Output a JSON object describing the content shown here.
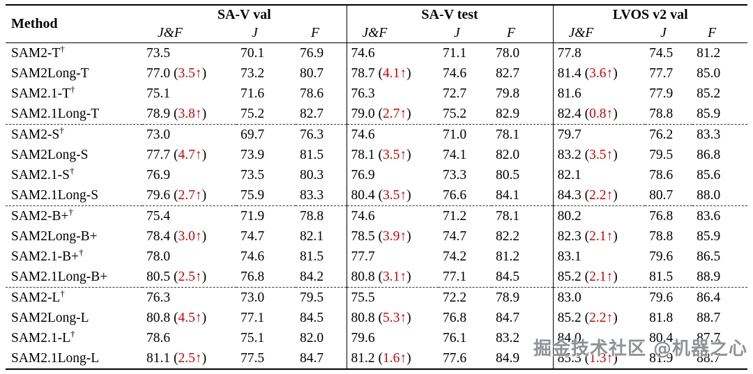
{
  "table": {
    "method_header": "Method",
    "groups": [
      {
        "label": "SA-V val",
        "cols": [
          "J&F",
          "J",
          "F"
        ]
      },
      {
        "label": "SA-V test",
        "cols": [
          "J&F",
          "J",
          "F"
        ]
      },
      {
        "label": "LVOS v2 val",
        "cols": [
          "J&F",
          "J",
          "F"
        ]
      }
    ],
    "dashed_after": [
      4,
      8,
      12
    ],
    "rows": [
      {
        "method": "SAM2-T",
        "dagger": true,
        "cells": [
          {
            "v": "73.5"
          },
          {
            "v": "70.1"
          },
          {
            "v": "76.9"
          },
          {
            "v": "74.6"
          },
          {
            "v": "71.1"
          },
          {
            "v": "78.0"
          },
          {
            "v": "77.8"
          },
          {
            "v": "74.5"
          },
          {
            "v": "81.2"
          }
        ]
      },
      {
        "method": "SAM2Long-T",
        "dagger": false,
        "cells": [
          {
            "v": "77.0",
            "d": "3.5↑"
          },
          {
            "v": "73.2"
          },
          {
            "v": "80.7"
          },
          {
            "v": "78.7",
            "d": "4.1↑"
          },
          {
            "v": "74.6"
          },
          {
            "v": "82.7"
          },
          {
            "v": "81.4",
            "d": "3.6↑"
          },
          {
            "v": "77.7"
          },
          {
            "v": "85.0"
          }
        ]
      },
      {
        "method": "SAM2.1-T",
        "dagger": true,
        "cells": [
          {
            "v": "75.1"
          },
          {
            "v": "71.6"
          },
          {
            "v": "78.6"
          },
          {
            "v": "76.3"
          },
          {
            "v": "72.7"
          },
          {
            "v": "79.8"
          },
          {
            "v": "81.6"
          },
          {
            "v": "77.9"
          },
          {
            "v": "85.2"
          }
        ]
      },
      {
        "method": "SAM2.1Long-T",
        "dagger": false,
        "cells": [
          {
            "v": "78.9",
            "d": "3.8↑"
          },
          {
            "v": "75.2"
          },
          {
            "v": "82.7"
          },
          {
            "v": "79.0",
            "d": "2.7↑"
          },
          {
            "v": "75.2"
          },
          {
            "v": "82.9"
          },
          {
            "v": "82.4",
            "d": "0.8↑"
          },
          {
            "v": "78.8"
          },
          {
            "v": "85.9"
          }
        ]
      },
      {
        "method": "SAM2-S",
        "dagger": true,
        "cells": [
          {
            "v": "73.0"
          },
          {
            "v": "69.7"
          },
          {
            "v": "76.3"
          },
          {
            "v": "74.6"
          },
          {
            "v": "71.0"
          },
          {
            "v": "78.1"
          },
          {
            "v": "79.7"
          },
          {
            "v": "76.2"
          },
          {
            "v": "83.3"
          }
        ]
      },
      {
        "method": "SAM2Long-S",
        "dagger": false,
        "cells": [
          {
            "v": "77.7",
            "d": "4.7↑"
          },
          {
            "v": "73.9"
          },
          {
            "v": "81.5"
          },
          {
            "v": "78.1",
            "d": "3.5↑"
          },
          {
            "v": "74.1"
          },
          {
            "v": "82.0"
          },
          {
            "v": "83.2",
            "d": "3.5↑"
          },
          {
            "v": "79.5"
          },
          {
            "v": "86.8"
          }
        ]
      },
      {
        "method": "SAM2.1-S",
        "dagger": true,
        "cells": [
          {
            "v": "76.9"
          },
          {
            "v": "73.5"
          },
          {
            "v": "80.3"
          },
          {
            "v": "76.9"
          },
          {
            "v": "73.3"
          },
          {
            "v": "80.5"
          },
          {
            "v": "82.1"
          },
          {
            "v": "78.6"
          },
          {
            "v": "85.6"
          }
        ]
      },
      {
        "method": "SAM2.1Long-S",
        "dagger": false,
        "cells": [
          {
            "v": "79.6",
            "d": "2.7↑"
          },
          {
            "v": "75.9"
          },
          {
            "v": "83.3"
          },
          {
            "v": "80.4",
            "d": "3.5↑"
          },
          {
            "v": "76.6"
          },
          {
            "v": "84.1"
          },
          {
            "v": "84.3",
            "d": "2.2↑"
          },
          {
            "v": "80.7"
          },
          {
            "v": "88.0"
          }
        ]
      },
      {
        "method": "SAM2-B+",
        "dagger": true,
        "cells": [
          {
            "v": "75.4"
          },
          {
            "v": "71.9"
          },
          {
            "v": "78.8"
          },
          {
            "v": "74.6"
          },
          {
            "v": "71.2"
          },
          {
            "v": "78.1"
          },
          {
            "v": "80.2"
          },
          {
            "v": "76.8"
          },
          {
            "v": "83.6"
          }
        ]
      },
      {
        "method": "SAM2Long-B+",
        "dagger": false,
        "cells": [
          {
            "v": "78.4",
            "d": "3.0↑"
          },
          {
            "v": "74.7"
          },
          {
            "v": "82.1"
          },
          {
            "v": "78.5",
            "d": "3.9↑"
          },
          {
            "v": "74.7"
          },
          {
            "v": "82.2"
          },
          {
            "v": "82.3",
            "d": "2.1↑"
          },
          {
            "v": "78.8"
          },
          {
            "v": "85.9"
          }
        ]
      },
      {
        "method": "SAM2.1-B+",
        "dagger": true,
        "cells": [
          {
            "v": "78.0"
          },
          {
            "v": "74.6"
          },
          {
            "v": "81.5"
          },
          {
            "v": "77.7"
          },
          {
            "v": "74.2"
          },
          {
            "v": "81.2"
          },
          {
            "v": "83.1"
          },
          {
            "v": "79.6"
          },
          {
            "v": "86.5"
          }
        ]
      },
      {
        "method": "SAM2.1Long-B+",
        "dagger": false,
        "cells": [
          {
            "v": "80.5",
            "d": "2.5↑"
          },
          {
            "v": "76.8"
          },
          {
            "v": "84.2"
          },
          {
            "v": "80.8",
            "d": "3.1↑"
          },
          {
            "v": "77.1"
          },
          {
            "v": "84.5"
          },
          {
            "v": "85.2",
            "d": "2.1↑"
          },
          {
            "v": "81.5"
          },
          {
            "v": "88.9"
          }
        ]
      },
      {
        "method": "SAM2-L",
        "dagger": true,
        "cells": [
          {
            "v": "76.3"
          },
          {
            "v": "73.0"
          },
          {
            "v": "79.5"
          },
          {
            "v": "75.5"
          },
          {
            "v": "72.2"
          },
          {
            "v": "78.9"
          },
          {
            "v": "83.0"
          },
          {
            "v": "79.6"
          },
          {
            "v": "86.4"
          }
        ]
      },
      {
        "method": "SAM2Long-L",
        "dagger": false,
        "cells": [
          {
            "v": "80.8",
            "d": "4.5↑"
          },
          {
            "v": "77.1"
          },
          {
            "v": "84.5"
          },
          {
            "v": "80.8",
            "d": "5.3↑"
          },
          {
            "v": "76.8"
          },
          {
            "v": "84.7"
          },
          {
            "v": "85.2",
            "d": "2.2↑"
          },
          {
            "v": "81.8"
          },
          {
            "v": "88.7"
          }
        ]
      },
      {
        "method": "SAM2.1-L",
        "dagger": true,
        "cells": [
          {
            "v": "78.6"
          },
          {
            "v": "75.1"
          },
          {
            "v": "82.0"
          },
          {
            "v": "79.6"
          },
          {
            "v": "76.1"
          },
          {
            "v": "83.2"
          },
          {
            "v": "84.0"
          },
          {
            "v": "80.4"
          },
          {
            "v": "87.7"
          }
        ]
      },
      {
        "method": "SAM2.1Long-L",
        "dagger": false,
        "cells": [
          {
            "v": "81.1",
            "d": "2.5↑"
          },
          {
            "v": "77.5"
          },
          {
            "v": "84.7"
          },
          {
            "v": "81.2",
            "d": "1.6↑"
          },
          {
            "v": "77.6"
          },
          {
            "v": "84.9"
          },
          {
            "v": "85.3",
            "d": "1.3↑"
          },
          {
            "v": "81.9"
          },
          {
            "v": "88.7"
          }
        ]
      }
    ]
  },
  "colors": {
    "delta_red": "#d40000",
    "text": "#000000",
    "background": "#ffffff"
  },
  "watermark": {
    "text": "掘金技术社区 @机器之心"
  }
}
